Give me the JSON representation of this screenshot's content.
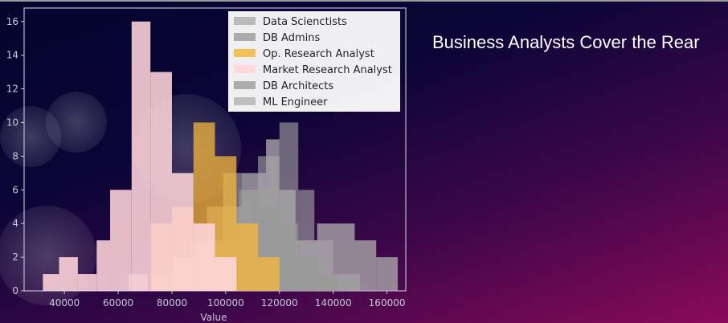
{
  "slide": {
    "title": "Business Analysts Cover the Rear"
  },
  "chart_data": {
    "type": "histogram",
    "title": "",
    "xlabel": "Value",
    "ylabel": "",
    "xlim": [
      25000,
      167000
    ],
    "ylim": [
      0,
      16.8
    ],
    "xticks": [
      40000,
      60000,
      80000,
      100000,
      120000,
      140000,
      160000
    ],
    "xtick_labels": [
      "40000",
      "60000",
      "80000",
      "100000",
      "120000",
      "140000",
      "160000"
    ],
    "yticks": [
      0,
      2,
      4,
      6,
      8,
      10,
      12,
      14,
      16
    ],
    "ytick_labels": [
      "0",
      "2",
      "4",
      "6",
      "8",
      "10",
      "12",
      "14",
      "16"
    ],
    "legend_position": "top-right",
    "series": [
      {
        "name": "Data Scienctists",
        "color": "#b0b0b0",
        "opacity": 0.75,
        "bins": [
          [
            64000,
            71000,
            1
          ],
          [
            71000,
            80000,
            0
          ],
          [
            80000,
            90000,
            2
          ],
          [
            90000,
            99000,
            3
          ],
          [
            99000,
            106000,
            5
          ],
          [
            106000,
            115000,
            7
          ],
          [
            115000,
            120000,
            9
          ],
          [
            120000,
            126000,
            6
          ],
          [
            126000,
            134000,
            3
          ],
          [
            134000,
            148000,
            4
          ],
          [
            148000,
            156000,
            3
          ],
          [
            156000,
            164000,
            2
          ]
        ]
      },
      {
        "name": "DB Admins",
        "color": "#9a9a9a",
        "opacity": 0.7,
        "bins": [
          [
            72000,
            80000,
            1
          ],
          [
            80000,
            87000,
            2
          ],
          [
            87000,
            93000,
            3
          ],
          [
            93000,
            99000,
            5
          ],
          [
            99000,
            106000,
            7
          ],
          [
            106000,
            113000,
            6
          ],
          [
            113000,
            120000,
            5
          ],
          [
            120000,
            126000,
            4
          ],
          [
            126000,
            134000,
            2
          ],
          [
            134000,
            142000,
            1
          ]
        ]
      },
      {
        "name": "Op. Research Analyst",
        "color": "#f5b83a",
        "opacity": 0.75,
        "bins": [
          [
            72000,
            80000,
            4
          ],
          [
            80000,
            88000,
            5
          ],
          [
            88000,
            96000,
            10
          ],
          [
            96000,
            104000,
            8
          ],
          [
            104000,
            112000,
            4
          ],
          [
            112000,
            120000,
            2
          ]
        ]
      },
      {
        "name": "Market Research Analyst",
        "color": "#ffd6dc",
        "opacity": 0.88,
        "bins": [
          [
            32000,
            38000,
            1
          ],
          [
            38000,
            45000,
            2
          ],
          [
            45000,
            52000,
            1
          ],
          [
            52000,
            57000,
            3
          ],
          [
            57000,
            65000,
            6
          ],
          [
            65000,
            72000,
            16
          ],
          [
            72000,
            80000,
            13
          ],
          [
            80000,
            88000,
            7
          ],
          [
            88000,
            96000,
            4
          ],
          [
            96000,
            104000,
            2
          ]
        ]
      },
      {
        "name": "DB Architects",
        "color": "#8e8e8e",
        "opacity": 0.6,
        "bins": [
          [
            80000,
            90000,
            1
          ],
          [
            90000,
            100000,
            2
          ],
          [
            100000,
            110000,
            4
          ],
          [
            110000,
            120000,
            6
          ],
          [
            120000,
            127000,
            4
          ],
          [
            127000,
            135000,
            2
          ],
          [
            135000,
            145000,
            1
          ]
        ]
      },
      {
        "name": "ML Engineer",
        "color": "#a8a8a8",
        "opacity": 0.6,
        "bins": [
          [
            95000,
            105000,
            3
          ],
          [
            105000,
            112000,
            6
          ],
          [
            112000,
            120000,
            8
          ],
          [
            120000,
            127000,
            10
          ],
          [
            127000,
            133000,
            6
          ],
          [
            133000,
            140000,
            3
          ],
          [
            140000,
            150000,
            1
          ]
        ]
      }
    ],
    "overlay_colors": {
      "market_research_left": "#ffd6dc",
      "orange_overlap": "#f5b86a"
    }
  }
}
